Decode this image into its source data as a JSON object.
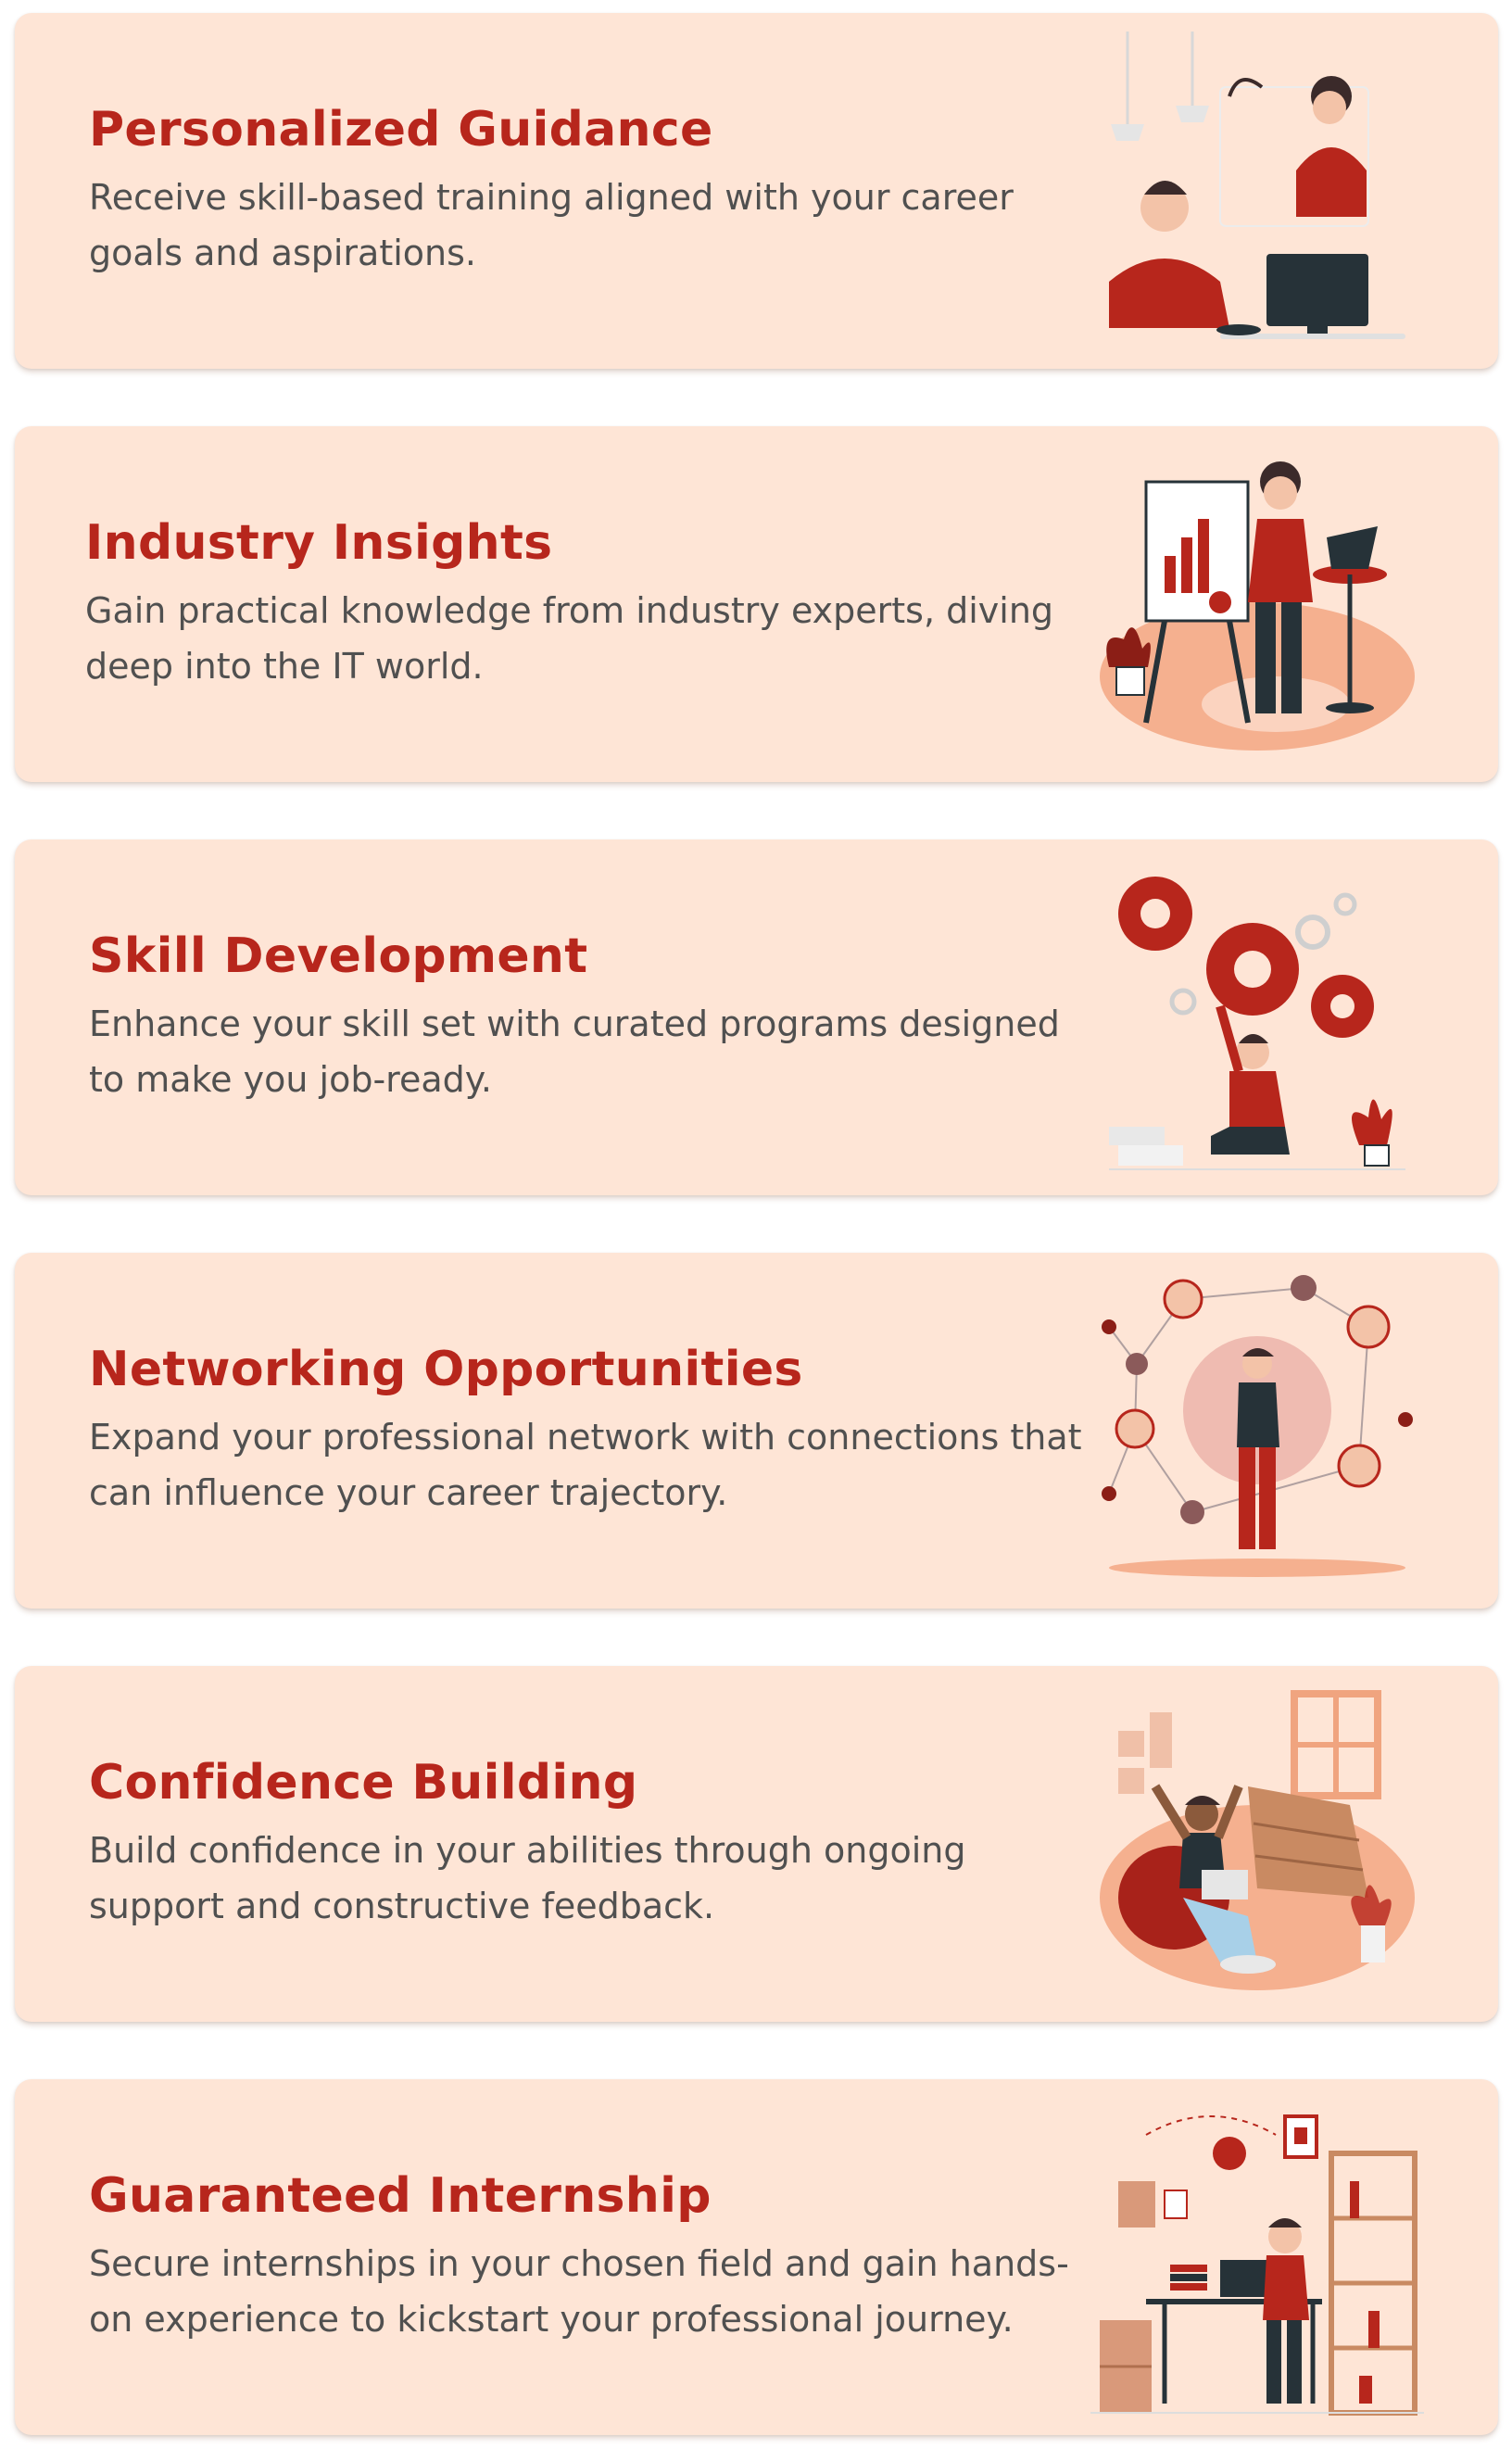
{
  "cards": [
    {
      "title": "Personalized Guidance",
      "description": "Receive skill-based training aligned with your career goals and aspirations.",
      "illustration_icon": "mentoring-illustration-icon"
    },
    {
      "title": "Industry Insights",
      "description": "Gain practical knowledge from industry experts, diving deep into the IT world.",
      "illustration_icon": "presentation-illustration-icon"
    },
    {
      "title": "Skill Development",
      "description": "Enhance your skill set with curated programs designed to make you job-ready.",
      "illustration_icon": "gears-illustration-icon"
    },
    {
      "title": "Networking Opportunities",
      "description": "Expand your professional network with connections that can influence your career trajectory.",
      "illustration_icon": "network-illustration-icon"
    },
    {
      "title": "Confidence Building",
      "description": "Build confidence in your abilities through ongoing support and constructive feedback.",
      "illustration_icon": "celebration-illustration-icon"
    },
    {
      "title": "Guaranteed Internship",
      "description": "Secure internships in your chosen field and gain hands-on experience to kickstart your professional journey.",
      "illustration_icon": "workspace-illustration-icon"
    }
  ],
  "colors": {
    "card_background": "#fee5d6",
    "title": "#b7261c",
    "description": "#505050",
    "accent_red": "#b7261c",
    "accent_peach": "#f5b08f"
  }
}
